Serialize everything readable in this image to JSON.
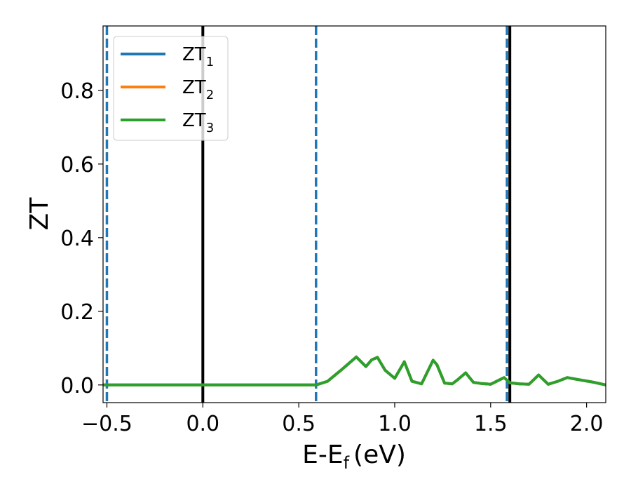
{
  "chart_data": {
    "type": "line",
    "xlabel": "E-E",
    "xlabel_sub": "f",
    "xlabel_unit": "(eV)",
    "ylabel": "ZT",
    "xlim": [
      -0.52,
      2.1
    ],
    "ylim": [
      -0.048,
      0.975
    ],
    "x_ticks": [
      -0.5,
      0.0,
      0.5,
      1.0,
      1.5,
      2.0
    ],
    "x_tick_labels": [
      "−0.5",
      "0.0",
      "0.5",
      "1.0",
      "1.5",
      "2.0"
    ],
    "y_ticks": [
      0.0,
      0.2,
      0.4,
      0.6,
      0.8
    ],
    "y_tick_labels": [
      "0.0",
      "0.2",
      "0.4",
      "0.6",
      "0.8"
    ],
    "grid": false,
    "legend_position": "top-left",
    "series": [
      {
        "name": "ZT",
        "subscript": "1",
        "color": "#1f77b4",
        "x": [
          -0.52,
          0.59,
          0.65,
          0.72,
          0.8,
          0.85,
          0.88,
          0.91,
          0.95,
          1.0,
          1.05,
          1.09,
          1.14,
          1.2,
          1.22,
          1.26,
          1.3,
          1.33,
          1.37,
          1.41,
          1.45,
          1.5,
          1.57,
          1.6,
          1.65,
          1.7,
          1.75,
          1.8,
          1.85,
          1.9,
          1.95,
          2.03,
          2.1
        ],
        "y": [
          0.0,
          0.0,
          0.01,
          0.04,
          0.076,
          0.05,
          0.068,
          0.075,
          0.04,
          0.018,
          0.063,
          0.01,
          0.003,
          0.067,
          0.055,
          0.005,
          0.003,
          0.015,
          0.033,
          0.007,
          0.004,
          0.002,
          0.02,
          0.006,
          0.003,
          0.002,
          0.027,
          0.002,
          0.01,
          0.02,
          0.015,
          0.008,
          0.0
        ]
      },
      {
        "name": "ZT",
        "subscript": "2",
        "color": "#ff7f0e",
        "x": [
          -0.52,
          0.59,
          0.65,
          0.72,
          0.8,
          0.85,
          0.88,
          0.91,
          0.95,
          1.0,
          1.05,
          1.09,
          1.14,
          1.2,
          1.22,
          1.26,
          1.3,
          1.33,
          1.37,
          1.41,
          1.45,
          1.5,
          1.57,
          1.6,
          1.65,
          1.7,
          1.75,
          1.8,
          1.85,
          1.9,
          1.95,
          2.03,
          2.1
        ],
        "y": [
          0.0,
          0.0,
          0.01,
          0.04,
          0.076,
          0.05,
          0.068,
          0.075,
          0.04,
          0.018,
          0.063,
          0.01,
          0.003,
          0.067,
          0.055,
          0.005,
          0.003,
          0.015,
          0.033,
          0.007,
          0.004,
          0.002,
          0.02,
          0.006,
          0.003,
          0.002,
          0.027,
          0.002,
          0.01,
          0.02,
          0.015,
          0.008,
          0.0
        ]
      },
      {
        "name": "ZT",
        "subscript": "3",
        "color": "#2ca02c",
        "x": [
          -0.52,
          0.59,
          0.65,
          0.72,
          0.8,
          0.85,
          0.88,
          0.91,
          0.95,
          1.0,
          1.05,
          1.09,
          1.14,
          1.2,
          1.22,
          1.26,
          1.3,
          1.33,
          1.37,
          1.41,
          1.45,
          1.5,
          1.57,
          1.6,
          1.65,
          1.7,
          1.75,
          1.8,
          1.85,
          1.9,
          1.95,
          2.03,
          2.1
        ],
        "y": [
          0.0,
          0.0,
          0.01,
          0.04,
          0.076,
          0.05,
          0.068,
          0.075,
          0.04,
          0.018,
          0.063,
          0.01,
          0.003,
          0.067,
          0.055,
          0.005,
          0.003,
          0.015,
          0.033,
          0.007,
          0.004,
          0.002,
          0.02,
          0.006,
          0.003,
          0.002,
          0.027,
          0.002,
          0.01,
          0.02,
          0.015,
          0.008,
          0.0
        ]
      }
    ],
    "vertical_lines": [
      {
        "x": -0.5,
        "style": "dashed",
        "color": "#1f77b4"
      },
      {
        "x": 0.0,
        "style": "solid",
        "color": "#000000"
      },
      {
        "x": 0.59,
        "style": "dashed",
        "color": "#1f77b4"
      },
      {
        "x": 1.585,
        "style": "dashed",
        "color": "#1f77b4"
      },
      {
        "x": 1.6,
        "style": "solid",
        "color": "#000000"
      }
    ]
  }
}
